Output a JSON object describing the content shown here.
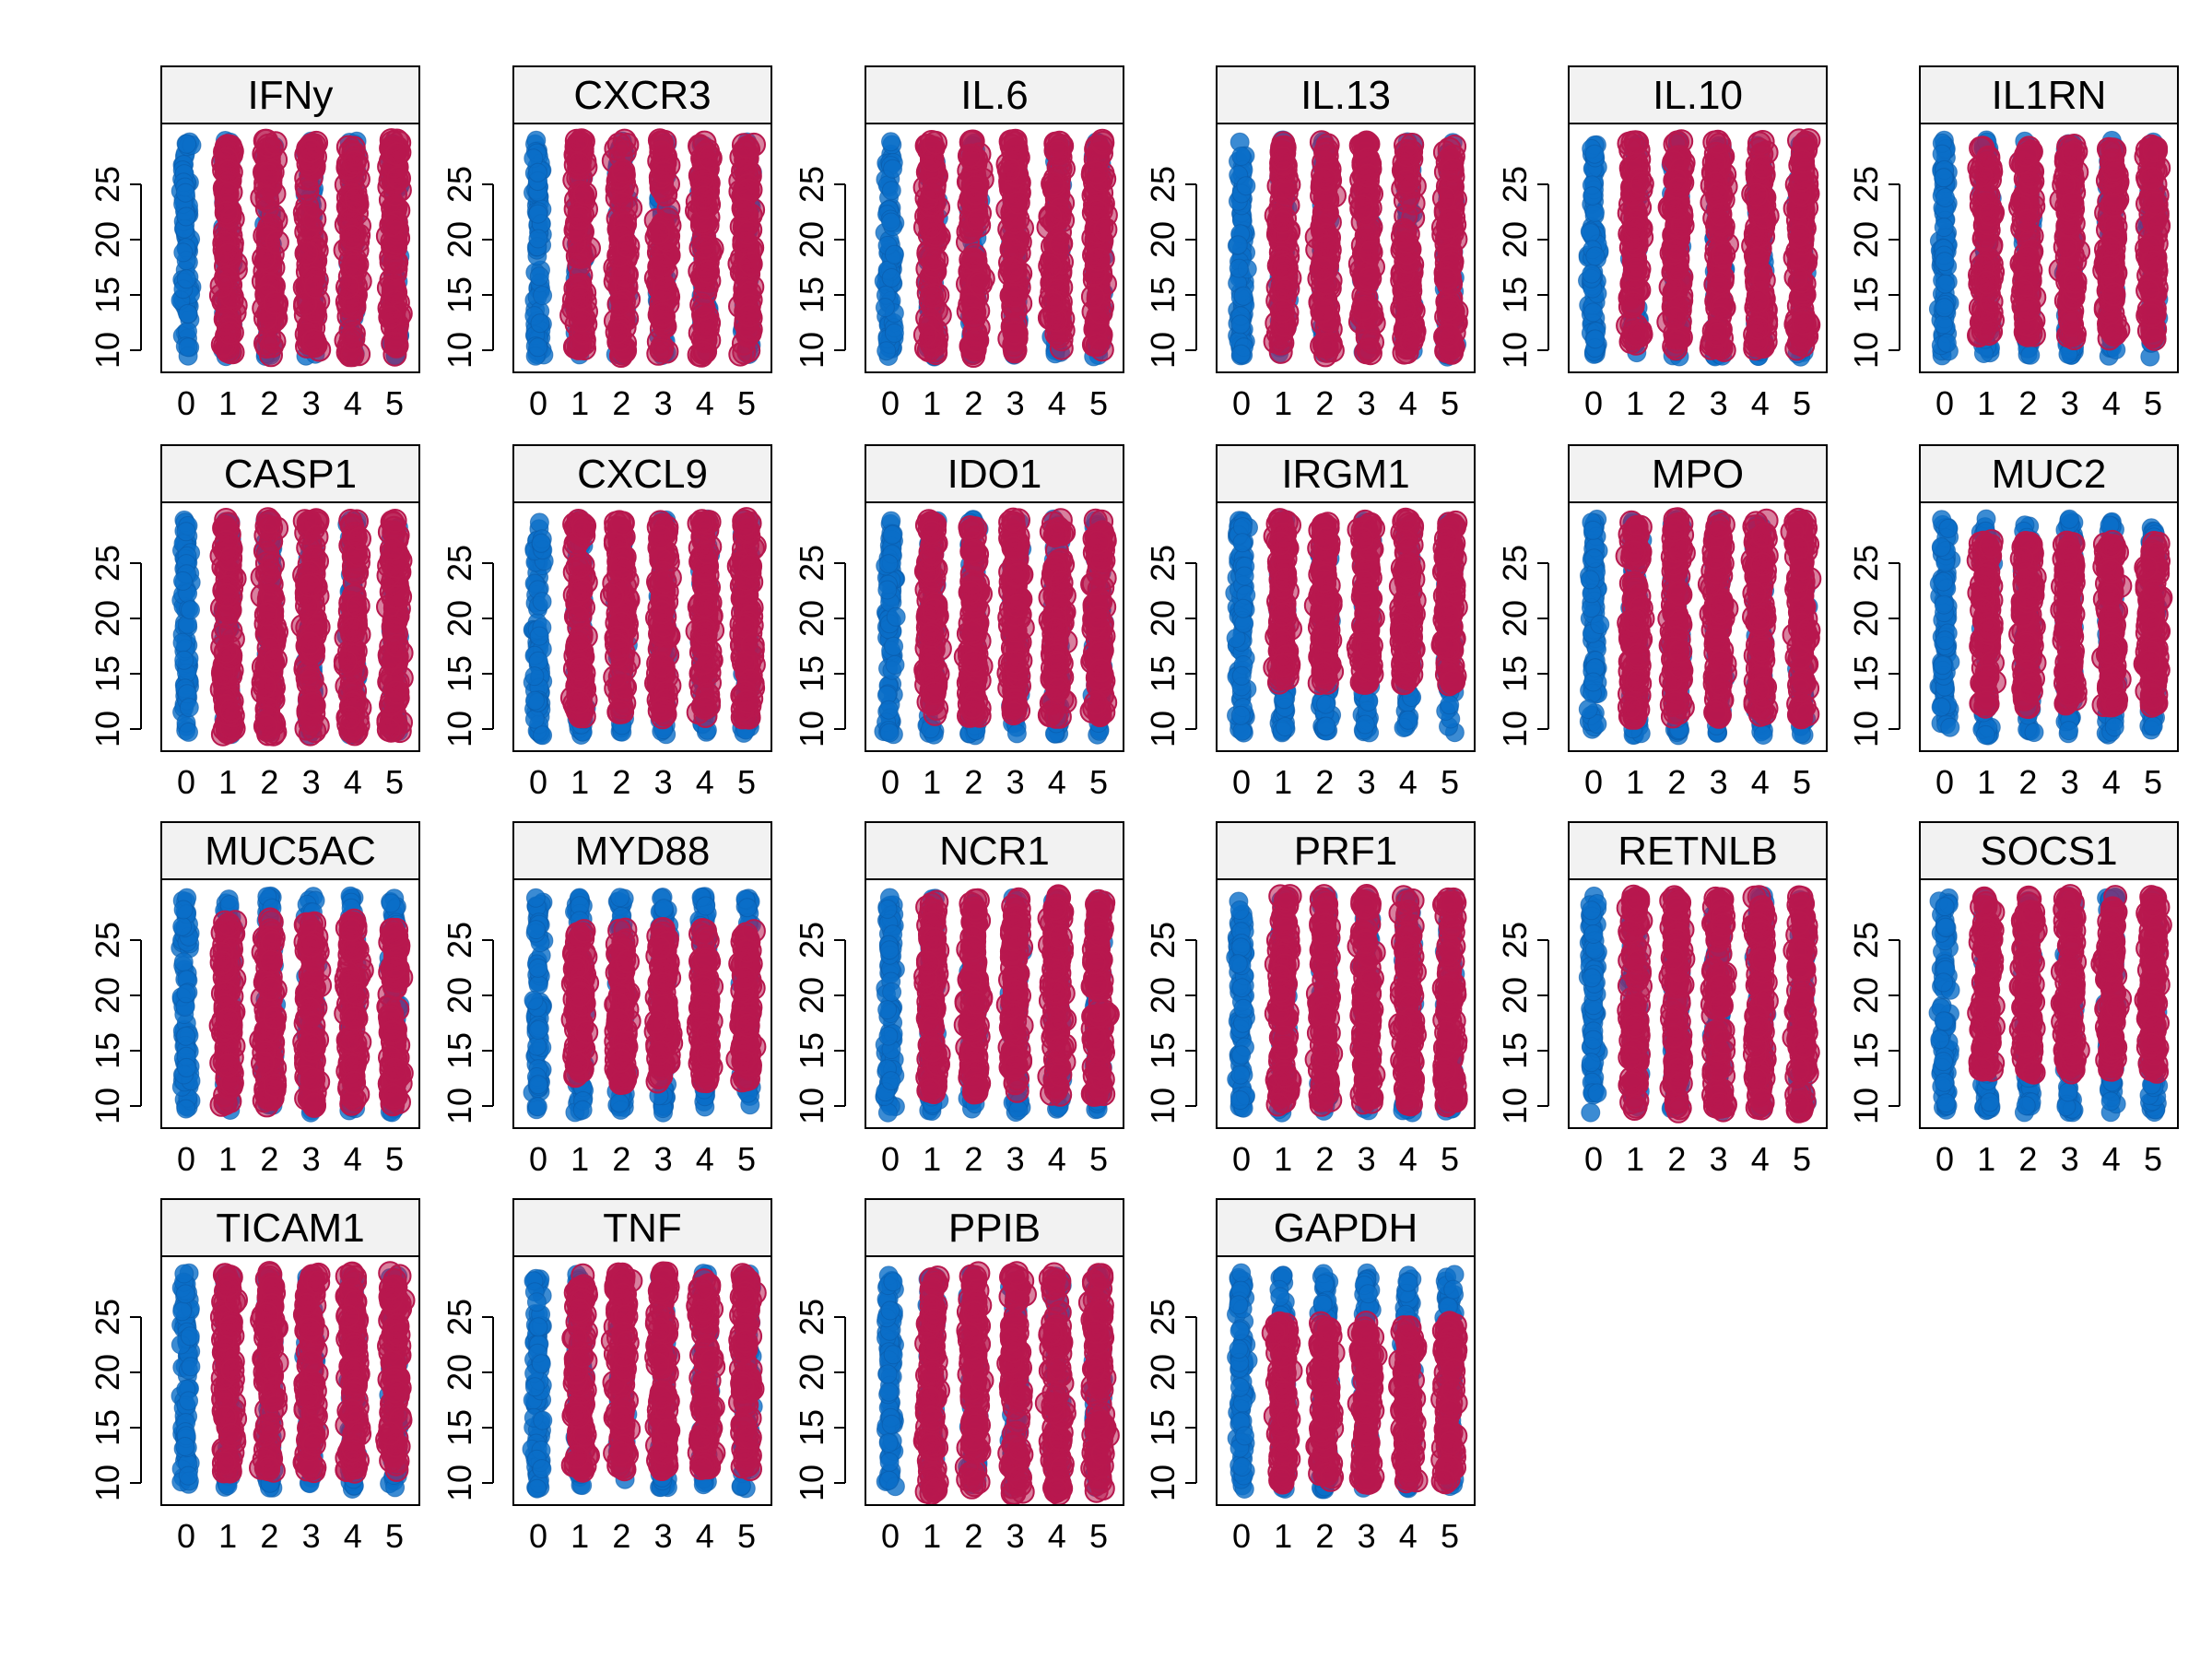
{
  "chart_data": {
    "type": "scatter",
    "layout": "facet-grid",
    "x_categories": [
      "0",
      "1",
      "2",
      "3",
      "4",
      "5"
    ],
    "y_ticks": [
      10,
      15,
      20,
      25
    ],
    "ylim": [
      9,
      29.5
    ],
    "colors": {
      "control": "#0a6ec8",
      "treated": "#b8184e",
      "strip_fill": "#f2f2f2",
      "frame": "#000000"
    },
    "panels": [
      {
        "title": "IFNy",
        "treated_groups": [
          1,
          2,
          3,
          4,
          5
        ],
        "treated_range": [
          9.5,
          29
        ]
      },
      {
        "title": "CXCR3",
        "treated_groups": [
          1,
          2,
          3,
          4,
          5
        ],
        "treated_range": [
          9.5,
          29
        ]
      },
      {
        "title": "IL.6",
        "treated_groups": [
          1,
          2,
          3,
          4,
          5
        ],
        "treated_range": [
          9.5,
          29
        ]
      },
      {
        "title": "IL.13",
        "treated_groups": [
          1,
          2,
          3,
          4,
          5
        ],
        "treated_range": [
          9.5,
          29
        ]
      },
      {
        "title": "IL.10",
        "treated_groups": [
          1,
          2,
          3,
          4,
          5
        ],
        "treated_range": [
          10,
          29
        ]
      },
      {
        "title": "IL1RN",
        "treated_groups": [
          1,
          2,
          3,
          4,
          5
        ],
        "treated_range": [
          11,
          28.5
        ]
      },
      {
        "title": "CASP1",
        "treated_groups": [
          1,
          2,
          3,
          4,
          5
        ],
        "treated_range": [
          9.5,
          29
        ]
      },
      {
        "title": "CXCL9",
        "treated_groups": [
          1,
          2,
          3,
          4,
          5
        ],
        "treated_range": [
          11,
          29
        ]
      },
      {
        "title": "IDO1",
        "treated_groups": [
          1,
          2,
          3,
          4,
          5
        ],
        "treated_range": [
          11,
          29
        ]
      },
      {
        "title": "IRGM1",
        "treated_groups": [
          1,
          2,
          3,
          4,
          5
        ],
        "treated_range": [
          14,
          29
        ]
      },
      {
        "title": "MPO",
        "treated_groups": [
          1,
          2,
          3,
          4,
          5
        ],
        "treated_range": [
          11,
          29
        ]
      },
      {
        "title": "MUC2",
        "treated_groups": [
          1,
          2,
          3,
          4,
          5
        ],
        "treated_range": [
          12,
          27
        ]
      },
      {
        "title": "MUC5AC",
        "treated_groups": [
          1,
          2,
          3,
          4,
          5
        ],
        "treated_range": [
          10,
          27
        ]
      },
      {
        "title": "MYD88",
        "treated_groups": [
          1,
          2,
          3,
          4,
          5
        ],
        "treated_range": [
          12,
          26
        ]
      },
      {
        "title": "NCR1",
        "treated_groups": [
          1,
          2,
          3,
          4,
          5
        ],
        "treated_range": [
          11,
          29
        ]
      },
      {
        "title": "PRF1",
        "treated_groups": [
          1,
          2,
          3,
          4,
          5
        ],
        "treated_range": [
          10,
          29
        ]
      },
      {
        "title": "RETNLB",
        "treated_groups": [
          1,
          2,
          3,
          4,
          5
        ],
        "treated_range": [
          9.5,
          29
        ]
      },
      {
        "title": "SOCS1",
        "treated_groups": [
          1,
          2,
          3,
          4,
          5
        ],
        "treated_range": [
          13,
          29
        ]
      },
      {
        "title": "TICAM1",
        "treated_groups": [
          1,
          2,
          3,
          4,
          5
        ],
        "treated_range": [
          11,
          29
        ]
      },
      {
        "title": "TNF",
        "treated_groups": [
          1,
          2,
          3,
          4,
          5
        ],
        "treated_range": [
          11,
          29
        ]
      },
      {
        "title": "PPIB",
        "treated_groups": [
          1,
          2,
          3,
          4,
          5
        ],
        "treated_range": [
          9,
          29
        ]
      },
      {
        "title": "GAPDH",
        "treated_groups": [
          1,
          2,
          3,
          4,
          5
        ],
        "treated_range": [
          10,
          24.5
        ]
      }
    ]
  }
}
